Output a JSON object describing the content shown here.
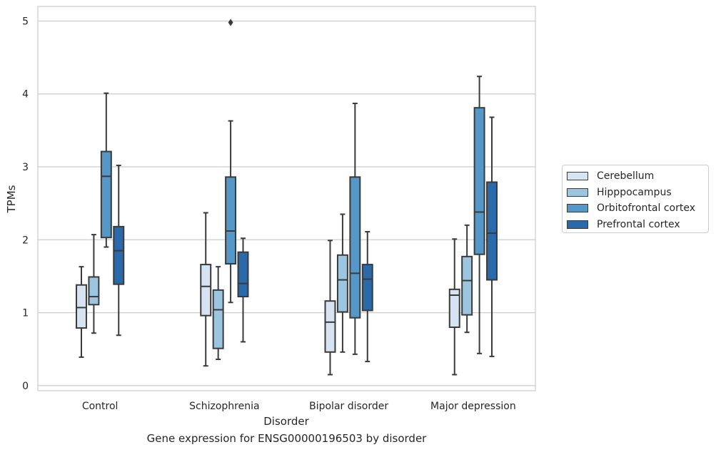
{
  "chart_data": {
    "type": "box",
    "xlabel": "Disorder",
    "ylabel": "TPMs",
    "ylim": [
      -0.07,
      5.2
    ],
    "yticks": [
      0,
      1,
      2,
      3,
      4,
      5
    ],
    "grid": "y",
    "legend_position": "right",
    "categories": [
      "Control",
      "Schizophrenia",
      "Bipolar disorder",
      "Major depression"
    ],
    "series": [
      {
        "name": "Cerebellum",
        "color": "#d6e3f1",
        "boxes": [
          {
            "whisker_low": 0.39,
            "q1": 0.79,
            "median": 1.07,
            "q3": 1.38,
            "whisker_high": 1.63,
            "outliers": []
          },
          {
            "whisker_low": 0.27,
            "q1": 0.96,
            "median": 1.36,
            "q3": 1.66,
            "whisker_high": 2.37,
            "outliers": []
          },
          {
            "whisker_low": 0.15,
            "q1": 0.46,
            "median": 0.87,
            "q3": 1.16,
            "whisker_high": 1.99,
            "outliers": []
          },
          {
            "whisker_low": 0.15,
            "q1": 0.8,
            "median": 1.24,
            "q3": 1.32,
            "whisker_high": 2.01,
            "outliers": []
          }
        ]
      },
      {
        "name": "Hipppocampus",
        "color": "#9cc6e0",
        "boxes": [
          {
            "whisker_low": 0.72,
            "q1": 1.11,
            "median": 1.22,
            "q3": 1.49,
            "whisker_high": 2.07,
            "outliers": []
          },
          {
            "whisker_low": 0.36,
            "q1": 0.51,
            "median": 1.04,
            "q3": 1.31,
            "whisker_high": 1.63,
            "outliers": []
          },
          {
            "whisker_low": 0.46,
            "q1": 1.01,
            "median": 1.45,
            "q3": 1.79,
            "whisker_high": 2.35,
            "outliers": []
          },
          {
            "whisker_low": 0.73,
            "q1": 0.97,
            "median": 1.44,
            "q3": 1.77,
            "whisker_high": 2.2,
            "outliers": []
          }
        ]
      },
      {
        "name": "Orbitofrontal cortex",
        "color": "#5597c6",
        "boxes": [
          {
            "whisker_low": 1.9,
            "q1": 2.03,
            "median": 2.87,
            "q3": 3.21,
            "whisker_high": 4.01,
            "outliers": []
          },
          {
            "whisker_low": 1.14,
            "q1": 1.67,
            "median": 2.12,
            "q3": 2.86,
            "whisker_high": 3.63,
            "outliers": [
              4.98
            ]
          },
          {
            "whisker_low": 0.43,
            "q1": 0.93,
            "median": 1.54,
            "q3": 2.86,
            "whisker_high": 3.87,
            "outliers": []
          },
          {
            "whisker_low": 0.44,
            "q1": 1.8,
            "median": 2.38,
            "q3": 3.81,
            "whisker_high": 4.24,
            "outliers": []
          }
        ]
      },
      {
        "name": "Prefrontal cortex",
        "color": "#2a6aab",
        "boxes": [
          {
            "whisker_low": 0.69,
            "q1": 1.39,
            "median": 1.85,
            "q3": 2.18,
            "whisker_high": 3.02,
            "outliers": []
          },
          {
            "whisker_low": 0.6,
            "q1": 1.22,
            "median": 1.4,
            "q3": 1.83,
            "whisker_high": 2.02,
            "outliers": []
          },
          {
            "whisker_low": 0.33,
            "q1": 1.03,
            "median": 1.46,
            "q3": 1.66,
            "whisker_high": 2.11,
            "outliers": []
          },
          {
            "whisker_low": 0.4,
            "q1": 1.45,
            "median": 2.09,
            "q3": 2.79,
            "whisker_high": 3.68,
            "outliers": []
          }
        ]
      }
    ]
  },
  "caption": "Gene expression for ENSG00000196503 by disorder"
}
